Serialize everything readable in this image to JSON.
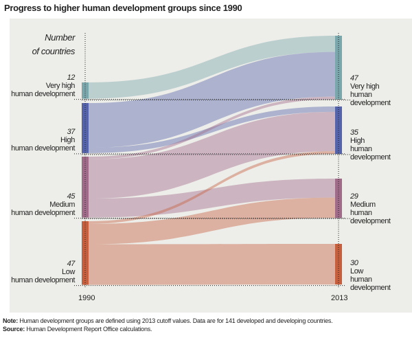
{
  "title": "Progress to higher human development groups since 1990",
  "axis_caption": [
    "Number",
    "of countries"
  ],
  "years": [
    "1990",
    "2013"
  ],
  "groups": [
    {
      "name": "Very high",
      "suffix": "human development",
      "n1990": "12",
      "n2013": "47",
      "color": "#7aa7ab"
    },
    {
      "name": "High",
      "suffix": "human development",
      "n1990": "37",
      "n2013": "35",
      "color": "#5563aa"
    },
    {
      "name": "Medium",
      "suffix": "human development",
      "n1990": "45",
      "n2013": "29",
      "color": "#a06a89"
    },
    {
      "name": "Low",
      "suffix": "human development",
      "n1990": "47",
      "n2013": "30",
      "color": "#c65f3e"
    }
  ],
  "flows": [
    {
      "from": 0,
      "to": 0,
      "value": 12
    },
    {
      "from": 1,
      "to": 0,
      "value": 33
    },
    {
      "from": 1,
      "to": 1,
      "value": 4
    },
    {
      "from": 2,
      "to": 0,
      "value": 2
    },
    {
      "from": 2,
      "to": 1,
      "value": 29
    },
    {
      "from": 2,
      "to": 2,
      "value": 14
    },
    {
      "from": 3,
      "to": 1,
      "value": 2
    },
    {
      "from": 3,
      "to": 2,
      "value": 15
    },
    {
      "from": 3,
      "to": 3,
      "value": 30
    }
  ],
  "note_label": "Note:",
  "note": "Human development groups are defined using 2013 cutoff values. Data are for 141 developed and developing countries.",
  "source_label": "Source:",
  "source": "Human Development Report Office calculations."
}
